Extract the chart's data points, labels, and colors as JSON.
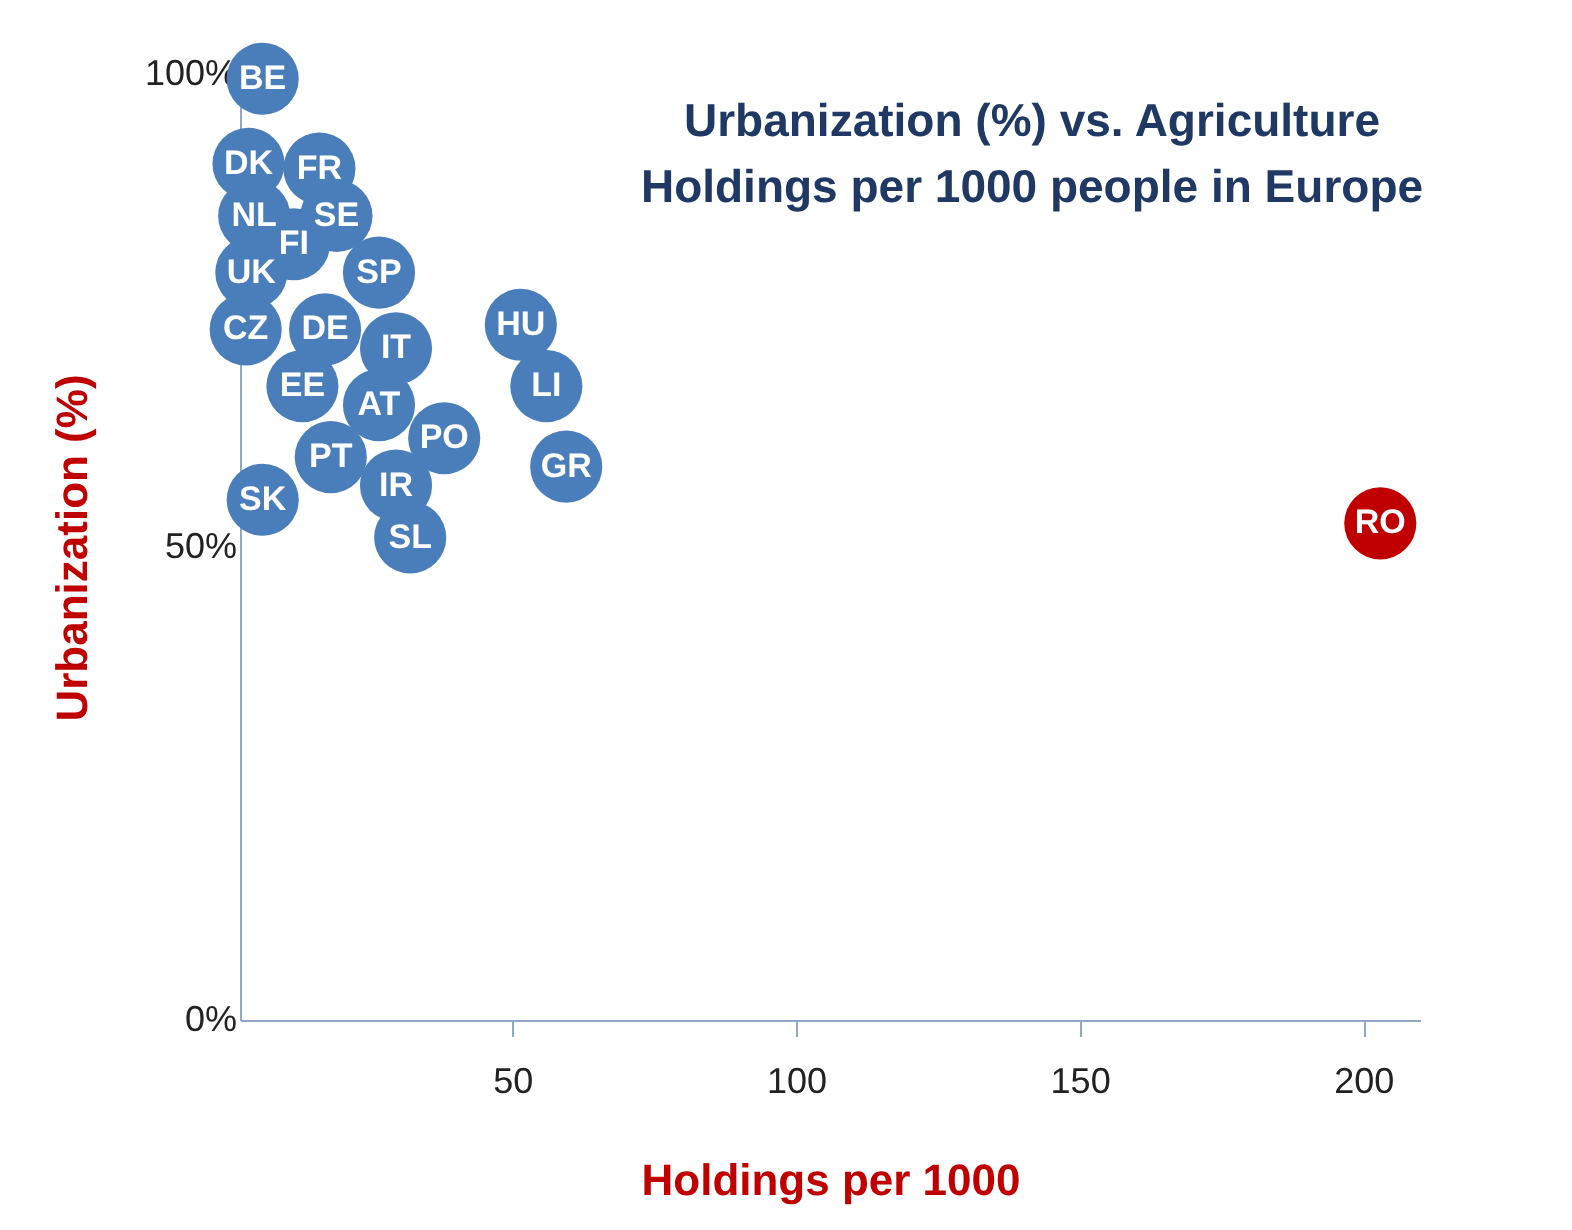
{
  "chart_data": {
    "type": "scatter",
    "title": "Urbanization (%) vs. Agriculture\nHoldings per 1000 people in Europe",
    "xlabel": "Holdings per 1000",
    "ylabel": "Urbanization (%)",
    "x": [
      6,
      3.5,
      16,
      4.5,
      19,
      11.5,
      4,
      26.5,
      3,
      17,
      29.5,
      13,
      26.5,
      38,
      18,
      29.5,
      6,
      32,
      51.5,
      56,
      59.5,
      203
    ],
    "values": [
      99.5,
      90.5,
      90,
      85,
      85,
      82,
      79,
      79,
      73,
      73,
      71,
      67,
      65,
      61.5,
      59.5,
      56.5,
      55,
      51,
      73.5,
      67,
      58.5,
      52.5
    ],
    "colors": [
      "#4a7ebb",
      "#4a7ebb",
      "#4a7ebb",
      "#4a7ebb",
      "#4a7ebb",
      "#4a7ebb",
      "#4a7ebb",
      "#4a7ebb",
      "#4a7ebb",
      "#4a7ebb",
      "#4a7ebb",
      "#4a7ebb",
      "#4a7ebb",
      "#4a7ebb",
      "#4a7ebb",
      "#4a7ebb",
      "#4a7ebb",
      "#4a7ebb",
      "#4a7ebb",
      "#4a7ebb",
      "#4a7ebb",
      "#c00000"
    ],
    "annotations": [
      {
        "text": "BE",
        "x": 6,
        "y": 99.5
      },
      {
        "text": "DK",
        "x": 3.5,
        "y": 90.5
      },
      {
        "text": "FR",
        "x": 16,
        "y": 90
      },
      {
        "text": "NL",
        "x": 4.5,
        "y": 85
      },
      {
        "text": "SE",
        "x": 19,
        "y": 85
      },
      {
        "text": "FI",
        "x": 11.5,
        "y": 82
      },
      {
        "text": "UK",
        "x": 4,
        "y": 79
      },
      {
        "text": "SP",
        "x": 26.5,
        "y": 79
      },
      {
        "text": "CZ",
        "x": 3,
        "y": 73
      },
      {
        "text": "DE",
        "x": 17,
        "y": 73
      },
      {
        "text": "IT",
        "x": 29.5,
        "y": 71
      },
      {
        "text": "EE",
        "x": 13,
        "y": 67
      },
      {
        "text": "AT",
        "x": 26.5,
        "y": 65
      },
      {
        "text": "PO",
        "x": 38,
        "y": 61.5
      },
      {
        "text": "PT",
        "x": 18,
        "y": 59.5
      },
      {
        "text": "IR",
        "x": 29.5,
        "y": 56.5
      },
      {
        "text": "SK",
        "x": 6,
        "y": 55
      },
      {
        "text": "SL",
        "x": 32,
        "y": 51
      },
      {
        "text": "HU",
        "x": 51.5,
        "y": 73.5
      },
      {
        "text": "LI",
        "x": 56,
        "y": 67
      },
      {
        "text": "GR",
        "x": 59.5,
        "y": 58.5
      },
      {
        "text": "RO",
        "x": 203,
        "y": 52.5
      }
    ],
    "xlim": [
      2,
      210
    ],
    "xticks": [
      50,
      100,
      150,
      200
    ],
    "ylim": [
      0,
      100
    ],
    "yticks": [
      {
        "value": 0,
        "label": "0%"
      },
      {
        "value": 50,
        "label": "50%"
      },
      {
        "value": 100,
        "label": "100%"
      }
    ],
    "marker": "circle",
    "grid": false
  }
}
